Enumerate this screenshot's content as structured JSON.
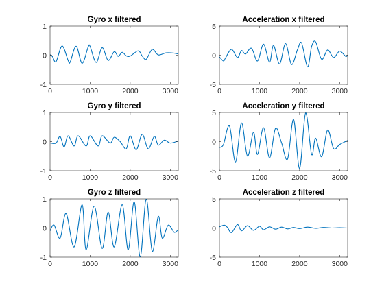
{
  "figure": {
    "background": "#ffffff",
    "line_color": "#0072bd"
  },
  "chart_data": [
    {
      "type": "line",
      "title": "Gyro x filtered",
      "xlim": [
        0,
        3200
      ],
      "ylim": [
        -1,
        1
      ],
      "xticks": [
        0,
        1000,
        2000,
        3000
      ],
      "yticks": [
        -1,
        0,
        1
      ],
      "series": [
        {
          "x": [
            0,
            60,
            150,
            300,
            450,
            500,
            650,
            800,
            950,
            1000,
            1150,
            1300,
            1450,
            1600,
            1700,
            1800,
            1900,
            2000,
            2200,
            2300,
            2400,
            2550,
            2700,
            2900,
            3100,
            3200
          ],
          "y": [
            0.02,
            -0.05,
            -0.22,
            0.32,
            -0.18,
            -0.24,
            0.31,
            -0.28,
            0.28,
            0.3,
            -0.25,
            0.26,
            -0.18,
            0.12,
            -0.04,
            0.1,
            -0.02,
            -0.03,
            0.15,
            -0.03,
            -0.14,
            0.2,
            0.01,
            0.08,
            0.07,
            0.04
          ]
        }
      ]
    },
    {
      "type": "line",
      "title": "Acceleration x filtered",
      "xlim": [
        0,
        3200
      ],
      "ylim": [
        -5,
        5
      ],
      "xticks": [
        0,
        1000,
        2000,
        3000
      ],
      "yticks": [
        -5,
        0,
        5
      ],
      "series": [
        {
          "x": [
            0,
            100,
            150,
            300,
            450,
            550,
            650,
            800,
            950,
            1100,
            1250,
            1350,
            1500,
            1650,
            1800,
            1950,
            2050,
            2200,
            2300,
            2400,
            2550,
            2700,
            2850,
            3000,
            3150,
            3200
          ],
          "y": [
            -0.3,
            -1.0,
            -0.5,
            1.0,
            -0.4,
            0.8,
            0.2,
            1.2,
            -1.0,
            1.9,
            -1.2,
            1.7,
            -1.5,
            2.0,
            -1.6,
            1.0,
            2.1,
            -2.0,
            1.5,
            2.3,
            -0.7,
            0.9,
            -0.4,
            0.7,
            -0.2,
            0.0
          ]
        }
      ]
    },
    {
      "type": "line",
      "title": "Gyro y filtered",
      "xlim": [
        0,
        3200
      ],
      "ylim": [
        -1,
        1
      ],
      "xticks": [
        0,
        1000,
        2000,
        3000
      ],
      "yticks": [
        -1,
        0,
        1
      ],
      "series": [
        {
          "x": [
            0,
            150,
            250,
            350,
            450,
            600,
            700,
            900,
            1000,
            1200,
            1300,
            1500,
            1600,
            1750,
            1900,
            2000,
            2150,
            2300,
            2450,
            2600,
            2700,
            2850,
            3000,
            3200
          ],
          "y": [
            -0.05,
            -0.05,
            0.18,
            -0.18,
            0.2,
            -0.15,
            0.2,
            -0.15,
            0.2,
            -0.15,
            0.2,
            -0.05,
            0.15,
            0.0,
            -0.25,
            0.2,
            -0.28,
            0.25,
            -0.25,
            0.18,
            -0.12,
            0.05,
            -0.05,
            0.02
          ]
        }
      ]
    },
    {
      "type": "line",
      "title": "Acceleration y filtered",
      "xlim": [
        0,
        3200
      ],
      "ylim": [
        -5,
        5
      ],
      "xticks": [
        0,
        1000,
        2000,
        3000
      ],
      "yticks": [
        -5,
        0,
        5
      ],
      "series": [
        {
          "x": [
            0,
            100,
            250,
            400,
            550,
            700,
            850,
            950,
            1100,
            1250,
            1400,
            1550,
            1700,
            1850,
            2000,
            2150,
            2300,
            2400,
            2550,
            2700,
            2850,
            3000,
            3200
          ],
          "y": [
            -1.0,
            -0.5,
            2.7,
            -3.5,
            3.2,
            -2.5,
            1.6,
            -2.2,
            2.4,
            -2.8,
            2.3,
            -0.2,
            -3.0,
            3.8,
            -4.6,
            4.9,
            -2.2,
            0.6,
            -2.6,
            2.0,
            -1.2,
            -0.5,
            0.2
          ]
        }
      ]
    },
    {
      "type": "line",
      "title": "Gyro z filtered",
      "xlim": [
        0,
        3200
      ],
      "ylim": [
        -1,
        1
      ],
      "xticks": [
        0,
        1000,
        2000,
        3000
      ],
      "yticks": [
        -1,
        0,
        1
      ],
      "series": [
        {
          "x": [
            0,
            100,
            250,
            400,
            600,
            800,
            900,
            1100,
            1300,
            1450,
            1600,
            1800,
            1950,
            2100,
            2250,
            2400,
            2550,
            2700,
            2800,
            2950,
            3100,
            3200
          ],
          "y": [
            -0.1,
            0.1,
            -0.35,
            0.5,
            -0.65,
            0.8,
            -0.75,
            0.75,
            -0.7,
            0.55,
            -0.65,
            0.8,
            -0.75,
            0.9,
            -1.0,
            1.0,
            -0.8,
            0.4,
            -0.35,
            0.1,
            -0.15,
            -0.05
          ]
        }
      ]
    },
    {
      "type": "line",
      "title": "Acceleration z filtered",
      "xlim": [
        0,
        3200
      ],
      "ylim": [
        -5,
        5
      ],
      "xticks": [
        0,
        1000,
        2000,
        3000
      ],
      "yticks": [
        -5,
        0,
        5
      ],
      "series": [
        {
          "x": [
            0,
            120,
            200,
            300,
            450,
            550,
            700,
            850,
            1000,
            1100,
            1250,
            1400,
            1550,
            1700,
            1850,
            2000,
            2200,
            2400,
            2600,
            2800,
            3000,
            3200
          ],
          "y": [
            0.2,
            0.5,
            0.1,
            -0.8,
            0.6,
            -0.5,
            0.4,
            -0.4,
            0.3,
            -0.3,
            0.2,
            -0.2,
            0.15,
            -0.15,
            0.1,
            -0.1,
            0.15,
            -0.05,
            0.1,
            0.0,
            0.05,
            0.0
          ]
        }
      ]
    }
  ]
}
